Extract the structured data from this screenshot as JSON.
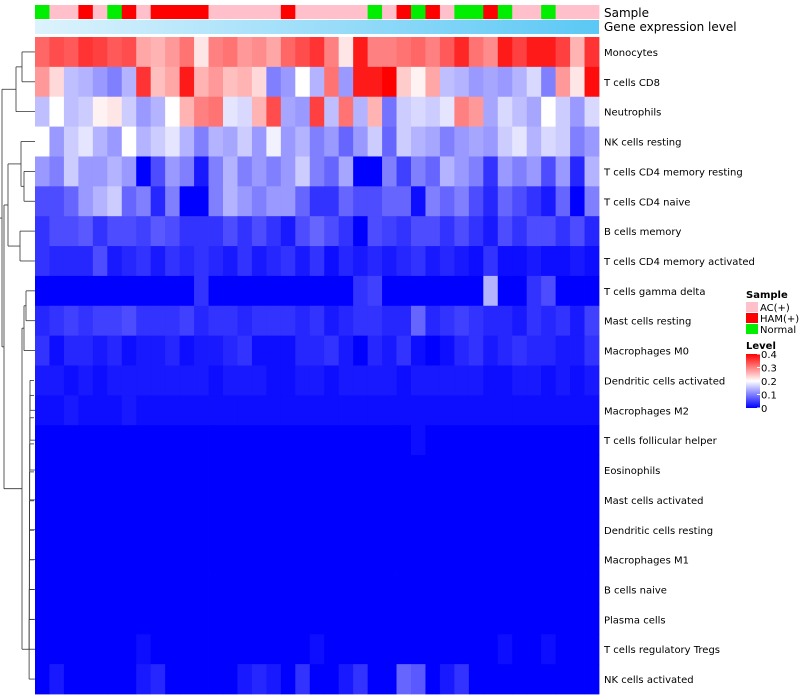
{
  "chart_data": {
    "type": "heatmap",
    "annotation_labels": {
      "sample": "Sample",
      "expression": "Gene expression level"
    },
    "samples": [
      "Normal",
      "AC(+)",
      "AC(+)",
      "HAM(+)",
      "AC(+)",
      "Normal",
      "HAM(+)",
      "AC(+)",
      "HAM(+)",
      "HAM(+)",
      "HAM(+)",
      "HAM(+)",
      "AC(+)",
      "AC(+)",
      "AC(+)",
      "AC(+)",
      "AC(+)",
      "HAM(+)",
      "AC(+)",
      "AC(+)",
      "AC(+)",
      "AC(+)",
      "AC(+)",
      "Normal",
      "AC(+)",
      "HAM(+)",
      "Normal",
      "HAM(+)",
      "AC(+)",
      "Normal",
      "Normal",
      "HAM(+)",
      "Normal",
      "AC(+)",
      "AC(+)",
      "Normal",
      "AC(+)",
      "AC(+)",
      "AC(+)"
    ],
    "rows": [
      "Monocytes",
      "T cells CD8",
      "Neutrophils",
      "NK cells resting",
      "T cells CD4 memory resting",
      "T cells CD4 naive",
      "B cells memory",
      "T cells CD4 memory activated",
      "T cells gamma delta",
      "Mast cells resting",
      "Macrophages M0",
      "Dendritic cells activated",
      "Macrophages M2",
      "T cells follicular helper",
      "Eosinophils",
      "Mast cells activated",
      "Dendritic cells resting",
      "Macrophages M1",
      "B cells naive",
      "Plasma cells",
      "T cells regulatory  Tregs",
      "NK cells activated"
    ],
    "values": [
      [
        0.32,
        0.34,
        0.33,
        0.36,
        0.35,
        0.33,
        0.34,
        0.27,
        0.26,
        0.28,
        0.31,
        0.22,
        0.3,
        0.31,
        0.28,
        0.29,
        0.27,
        0.32,
        0.34,
        0.36,
        0.3,
        0.22,
        0.38,
        0.3,
        0.3,
        0.31,
        0.32,
        0.3,
        0.33,
        0.37,
        0.31,
        0.29,
        0.38,
        0.35,
        0.38,
        0.38,
        0.35,
        0.26,
        0.36
      ],
      [
        0.28,
        0.23,
        0.15,
        0.14,
        0.12,
        0.1,
        0.14,
        0.36,
        0.25,
        0.27,
        0.38,
        0.26,
        0.28,
        0.25,
        0.26,
        0.23,
        0.1,
        0.12,
        0.2,
        0.14,
        0.31,
        0.12,
        0.38,
        0.38,
        0.4,
        0.24,
        0.21,
        0.27,
        0.15,
        0.14,
        0.12,
        0.13,
        0.12,
        0.14,
        0.17,
        0.1,
        0.28,
        0.22,
        0.39
      ],
      [
        0.15,
        0.2,
        0.15,
        0.16,
        0.21,
        0.22,
        0.16,
        0.12,
        0.14,
        0.2,
        0.26,
        0.3,
        0.31,
        0.18,
        0.17,
        0.26,
        0.34,
        0.13,
        0.12,
        0.35,
        0.15,
        0.31,
        0.14,
        0.26,
        0.09,
        0.16,
        0.17,
        0.16,
        0.18,
        0.3,
        0.28,
        0.13,
        0.17,
        0.15,
        0.13,
        0.2,
        0.16,
        0.12,
        0.17
      ],
      [
        0.2,
        0.12,
        0.16,
        0.18,
        0.14,
        0.12,
        0.2,
        0.14,
        0.16,
        0.18,
        0.14,
        0.1,
        0.14,
        0.13,
        0.16,
        0.12,
        0.19,
        0.12,
        0.14,
        0.1,
        0.12,
        0.08,
        0.12,
        0.16,
        0.08,
        0.16,
        0.14,
        0.13,
        0.1,
        0.12,
        0.13,
        0.12,
        0.16,
        0.18,
        0.14,
        0.17,
        0.16,
        0.1,
        0.12
      ],
      [
        0.12,
        0.1,
        0.16,
        0.12,
        0.12,
        0.14,
        0.12,
        0.0,
        0.06,
        0.12,
        0.1,
        0.02,
        0.1,
        0.14,
        0.1,
        0.12,
        0.1,
        0.12,
        0.16,
        0.1,
        0.08,
        0.13,
        0.0,
        0.0,
        0.1,
        0.05,
        0.1,
        0.08,
        0.14,
        0.12,
        0.1,
        0.04,
        0.12,
        0.1,
        0.12,
        0.06,
        0.12,
        0.03,
        0.14
      ],
      [
        0.06,
        0.06,
        0.08,
        0.12,
        0.14,
        0.16,
        0.08,
        0.1,
        0.03,
        0.1,
        0.0,
        0.0,
        0.1,
        0.14,
        0.12,
        0.1,
        0.12,
        0.12,
        0.08,
        0.04,
        0.04,
        0.08,
        0.06,
        0.06,
        0.08,
        0.08,
        0.01,
        0.1,
        0.08,
        0.1,
        0.06,
        0.03,
        0.08,
        0.06,
        0.04,
        0.02,
        0.08,
        0.0,
        0.1
      ],
      [
        0.04,
        0.06,
        0.06,
        0.07,
        0.04,
        0.06,
        0.06,
        0.05,
        0.07,
        0.06,
        0.04,
        0.04,
        0.04,
        0.06,
        0.04,
        0.06,
        0.04,
        0.02,
        0.06,
        0.08,
        0.06,
        0.04,
        0.0,
        0.06,
        0.05,
        0.04,
        0.06,
        0.06,
        0.04,
        0.06,
        0.04,
        0.02,
        0.06,
        0.04,
        0.06,
        0.06,
        0.04,
        0.06,
        0.03
      ],
      [
        0.04,
        0.03,
        0.03,
        0.03,
        0.06,
        0.02,
        0.03,
        0.04,
        0.02,
        0.04,
        0.03,
        0.04,
        0.03,
        0.02,
        0.04,
        0.02,
        0.03,
        0.04,
        0.02,
        0.04,
        0.01,
        0.03,
        0.02,
        0.03,
        0.02,
        0.03,
        0.04,
        0.02,
        0.03,
        0.02,
        0.01,
        0.04,
        0.01,
        0.01,
        0.02,
        0.01,
        0.01,
        0.02,
        0.01
      ],
      [
        0.0,
        0.0,
        0.0,
        0.0,
        0.0,
        0.0,
        0.0,
        0.0,
        0.0,
        0.0,
        0.0,
        0.04,
        0.0,
        0.0,
        0.0,
        0.0,
        0.0,
        0.0,
        0.0,
        0.0,
        0.0,
        0.0,
        0.04,
        0.05,
        0.0,
        0.0,
        0.0,
        0.0,
        0.0,
        0.0,
        0.0,
        0.14,
        0.0,
        0.0,
        0.04,
        0.06,
        0.0,
        0.0,
        0.0
      ],
      [
        0.03,
        0.04,
        0.05,
        0.04,
        0.05,
        0.05,
        0.06,
        0.04,
        0.04,
        0.04,
        0.05,
        0.03,
        0.04,
        0.04,
        0.03,
        0.04,
        0.04,
        0.04,
        0.03,
        0.04,
        0.02,
        0.03,
        0.04,
        0.04,
        0.03,
        0.03,
        0.08,
        0.03,
        0.04,
        0.05,
        0.04,
        0.03,
        0.03,
        0.02,
        0.04,
        0.03,
        0.04,
        0.02,
        0.05
      ],
      [
        0.04,
        0.01,
        0.03,
        0.03,
        0.02,
        0.03,
        0.01,
        0.02,
        0.02,
        0.03,
        0.01,
        0.02,
        0.02,
        0.03,
        0.04,
        0.01,
        0.01,
        0.01,
        0.03,
        0.03,
        0.04,
        0.02,
        0.0,
        0.03,
        0.02,
        0.04,
        0.01,
        0.0,
        0.01,
        0.03,
        0.04,
        0.02,
        0.03,
        0.04,
        0.03,
        0.03,
        0.02,
        0.02,
        0.04
      ],
      [
        0.02,
        0.02,
        0.01,
        0.02,
        0.01,
        0.02,
        0.02,
        0.02,
        0.02,
        0.02,
        0.02,
        0.02,
        0.01,
        0.02,
        0.02,
        0.02,
        0.01,
        0.01,
        0.02,
        0.02,
        0.01,
        0.02,
        0.02,
        0.02,
        0.02,
        0.01,
        0.02,
        0.02,
        0.02,
        0.02,
        0.02,
        0.01,
        0.01,
        0.02,
        0.02,
        0.01,
        0.02,
        0.01,
        0.02
      ],
      [
        0.01,
        0.01,
        0.02,
        0.01,
        0.01,
        0.01,
        0.02,
        0.01,
        0.01,
        0.01,
        0.01,
        0.01,
        0.01,
        0.01,
        0.01,
        0.01,
        0.01,
        0.01,
        0.01,
        0.01,
        0.01,
        0.01,
        0.01,
        0.01,
        0.01,
        0.01,
        0.01,
        0.01,
        0.01,
        0.01,
        0.01,
        0.01,
        0.01,
        0.01,
        0.01,
        0.01,
        0.01,
        0.01,
        0.01
      ],
      [
        0.0,
        0.0,
        0.0,
        0.0,
        0.0,
        0.0,
        0.0,
        0.0,
        0.0,
        0.0,
        0.0,
        0.0,
        0.0,
        0.0,
        0.0,
        0.0,
        0.0,
        0.0,
        0.0,
        0.0,
        0.0,
        0.0,
        0.0,
        0.0,
        0.0,
        0.0,
        0.01,
        0.0,
        0.0,
        0.0,
        0.0,
        0.0,
        0.0,
        0.0,
        0.0,
        0.0,
        0.0,
        0.0,
        0.0
      ],
      [
        0.0,
        0.0,
        0.0,
        0.0,
        0.0,
        0.0,
        0.0,
        0.0,
        0.0,
        0.0,
        0.0,
        0.0,
        0.0,
        0.0,
        0.0,
        0.0,
        0.0,
        0.0,
        0.0,
        0.0,
        0.0,
        0.0,
        0.0,
        0.0,
        0.0,
        0.0,
        0.0,
        0.0,
        0.0,
        0.0,
        0.0,
        0.0,
        0.0,
        0.0,
        0.0,
        0.0,
        0.0,
        0.0,
        0.0
      ],
      [
        0.0,
        0.0,
        0.0,
        0.0,
        0.0,
        0.0,
        0.0,
        0.0,
        0.0,
        0.0,
        0.0,
        0.0,
        0.0,
        0.0,
        0.0,
        0.0,
        0.0,
        0.0,
        0.0,
        0.0,
        0.0,
        0.0,
        0.0,
        0.0,
        0.0,
        0.0,
        0.0,
        0.0,
        0.0,
        0.0,
        0.0,
        0.0,
        0.0,
        0.0,
        0.0,
        0.0,
        0.0,
        0.0,
        0.0
      ],
      [
        0.0,
        0.0,
        0.0,
        0.0,
        0.0,
        0.0,
        0.0,
        0.0,
        0.0,
        0.0,
        0.0,
        0.0,
        0.0,
        0.0,
        0.0,
        0.0,
        0.0,
        0.0,
        0.0,
        0.0,
        0.0,
        0.0,
        0.0,
        0.0,
        0.0,
        0.0,
        0.0,
        0.0,
        0.0,
        0.0,
        0.0,
        0.0,
        0.0,
        0.0,
        0.0,
        0.0,
        0.0,
        0.0,
        0.0
      ],
      [
        0.0,
        0.0,
        0.0,
        0.0,
        0.0,
        0.0,
        0.0,
        0.0,
        0.0,
        0.0,
        0.0,
        0.0,
        0.0,
        0.0,
        0.0,
        0.0,
        0.0,
        0.0,
        0.0,
        0.0,
        0.0,
        0.0,
        0.0,
        0.0,
        0.0,
        0.0,
        0.0,
        0.0,
        0.0,
        0.0,
        0.0,
        0.0,
        0.0,
        0.0,
        0.0,
        0.0,
        0.0,
        0.0,
        0.0
      ],
      [
        0.0,
        0.0,
        0.0,
        0.0,
        0.0,
        0.0,
        0.0,
        0.0,
        0.0,
        0.0,
        0.0,
        0.0,
        0.0,
        0.0,
        0.0,
        0.0,
        0.0,
        0.0,
        0.0,
        0.0,
        0.0,
        0.0,
        0.0,
        0.0,
        0.0,
        0.0,
        0.0,
        0.0,
        0.0,
        0.0,
        0.0,
        0.0,
        0.0,
        0.0,
        0.0,
        0.0,
        0.0,
        0.0,
        0.0
      ],
      [
        0.0,
        0.0,
        0.0,
        0.0,
        0.0,
        0.0,
        0.0,
        0.0,
        0.0,
        0.0,
        0.0,
        0.0,
        0.0,
        0.0,
        0.0,
        0.0,
        0.0,
        0.0,
        0.0,
        0.0,
        0.0,
        0.0,
        0.0,
        0.0,
        0.0,
        0.0,
        0.0,
        0.0,
        0.0,
        0.0,
        0.0,
        0.0,
        0.0,
        0.0,
        0.0,
        0.0,
        0.0,
        0.0,
        0.0
      ],
      [
        0.0,
        0.0,
        0.0,
        0.0,
        0.0,
        0.0,
        0.0,
        0.01,
        0.0,
        0.0,
        0.0,
        0.0,
        0.0,
        0.0,
        0.0,
        0.0,
        0.0,
        0.0,
        0.0,
        0.01,
        0.0,
        0.0,
        0.0,
        0.0,
        0.0,
        0.0,
        0.0,
        0.0,
        0.0,
        0.0,
        0.0,
        0.0,
        0.01,
        0.0,
        0.0,
        0.01,
        0.0,
        0.0,
        0.0
      ],
      [
        0.0,
        0.02,
        0.0,
        0.0,
        0.0,
        0.0,
        0.0,
        0.02,
        0.03,
        0.0,
        0.0,
        0.0,
        0.0,
        0.0,
        0.02,
        0.03,
        0.02,
        0.0,
        0.04,
        0.0,
        0.0,
        0.02,
        0.04,
        0.0,
        0.0,
        0.08,
        0.07,
        0.0,
        0.02,
        0.04,
        0.0,
        0.0,
        0.0,
        0.0,
        0.0,
        0.0,
        0.0,
        0.0,
        0.0
      ]
    ],
    "legend": {
      "sample_title": "Sample",
      "sample_items": [
        {
          "label": "AC(+)",
          "color": "#FFC0CB"
        },
        {
          "label": "HAM(+)",
          "color": "#FF0000"
        },
        {
          "label": "Normal",
          "color": "#00EE00"
        }
      ],
      "level_title": "Level",
      "level_ticks": [
        "0.4",
        "0.3",
        "0.2",
        "0.1",
        "0"
      ],
      "level_range": [
        0,
        0.4
      ]
    },
    "expression_color": "#5BC8F5",
    "expression_light_color": "#DDF3FD",
    "color_scale": {
      "low": "#0000FF",
      "mid": "#FFFFFF",
      "high": "#FF0000",
      "mid_value": 0.2
    }
  }
}
